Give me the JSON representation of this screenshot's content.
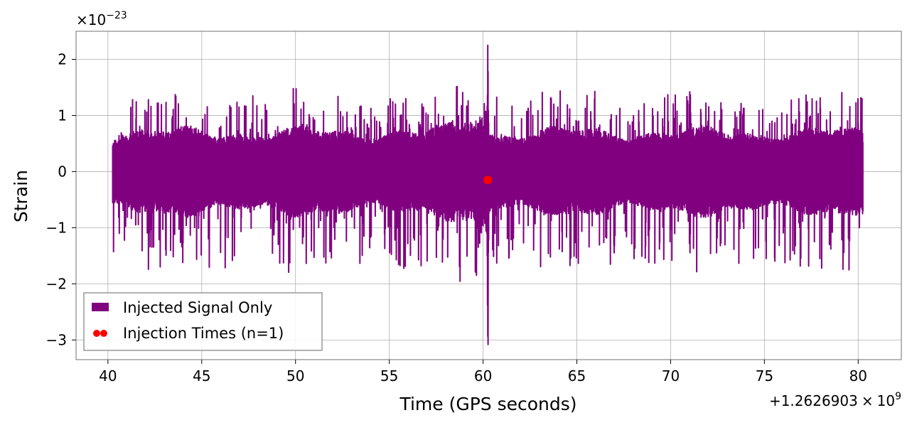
{
  "chart_data": {
    "type": "line",
    "xlabel": "Time (GPS seconds)",
    "ylabel": "Strain",
    "y_scale_base": "×10",
    "y_scale_exp": "−23",
    "x_offset_prefix": "+1.2626903",
    "x_offset_times": "×",
    "x_offset_base": "10",
    "x_offset_exp": "9",
    "xlim": [
      38.3,
      82.3
    ],
    "ylim": [
      -3.35,
      2.5
    ],
    "x_ticks": [
      40,
      45,
      50,
      55,
      60,
      65,
      70,
      75,
      80
    ],
    "x_tick_labels": [
      "40",
      "45",
      "50",
      "55",
      "60",
      "65",
      "70",
      "75",
      "80"
    ],
    "y_ticks": [
      -3,
      -2,
      -1,
      0,
      1,
      2
    ],
    "y_tick_labels": [
      "−3",
      "−2",
      "−1",
      "0",
      "1",
      "2"
    ],
    "grid": true,
    "legend_position": "bottom-left",
    "series": [
      {
        "name": "Injected Signal Only",
        "kind": "line",
        "color": "#800080",
        "x_range": [
          40.25,
          80.25
        ],
        "typical_band": [
          -0.65,
          0.65
        ],
        "noise_peak_max": 1.42,
        "noise_peak_min": -1.78,
        "spike_time": 60.25,
        "spike_max": 2.25,
        "spike_min": -3.08
      },
      {
        "name": "Injection Times (n=1)",
        "kind": "scatter",
        "color": "#ff0000",
        "points": [
          {
            "x": 60.25,
            "y": -0.15
          }
        ]
      }
    ]
  }
}
